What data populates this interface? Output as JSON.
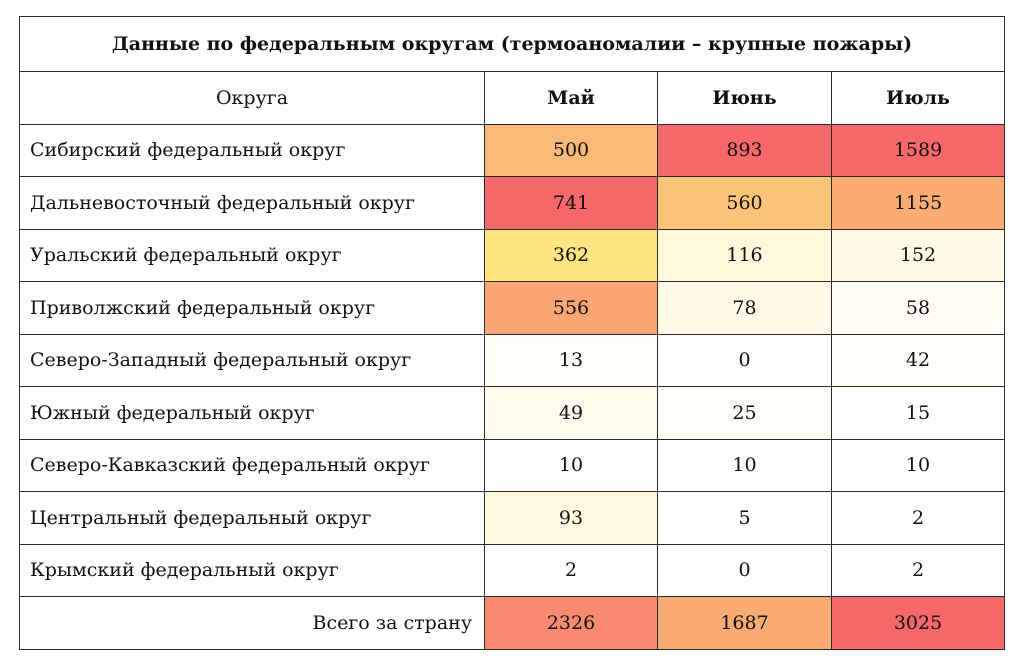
{
  "table": {
    "title": "Данные по федеральным округам (термоаномалии – крупные пожары)",
    "header_label": "Округа",
    "months": [
      "Май",
      "Июнь",
      "Июль"
    ],
    "rows": [
      {
        "name": "Сибирский федеральный округ",
        "values": [
          500,
          893,
          1589
        ]
      },
      {
        "name": "Дальневосточный федеральный округ",
        "values": [
          741,
          560,
          1155
        ]
      },
      {
        "name": "Уральский федеральный округ",
        "values": [
          362,
          116,
          152
        ]
      },
      {
        "name": "Приволжский федеральный округ",
        "values": [
          556,
          78,
          58
        ]
      },
      {
        "name": "Северо-Западный федеральный округ",
        "values": [
          13,
          0,
          42
        ]
      },
      {
        "name": "Южный федеральный округ",
        "values": [
          49,
          25,
          15
        ]
      },
      {
        "name": "Северо-Кавказский федеральный округ",
        "values": [
          10,
          10,
          10
        ]
      },
      {
        "name": "Центральный федеральный округ",
        "values": [
          93,
          5,
          2
        ]
      },
      {
        "name": "Крымский федеральный округ",
        "values": [
          2,
          0,
          2
        ]
      }
    ],
    "total": {
      "label": "Всего за страну",
      "values": [
        2326,
        1687,
        3025
      ]
    }
  },
  "colors": {
    "scale_low": "#ffffff",
    "scale_mid": "#fde47e",
    "scale_high": "#f8686b"
  },
  "chart_data": {
    "type": "table",
    "title": "Данные по федеральным округам (термоаномалии – крупные пожары)",
    "categories": [
      "Май",
      "Июнь",
      "Июль"
    ],
    "series": [
      {
        "name": "Сибирский федеральный округ",
        "values": [
          500,
          893,
          1589
        ]
      },
      {
        "name": "Дальневосточный федеральный округ",
        "values": [
          741,
          560,
          1155
        ]
      },
      {
        "name": "Уральский федеральный округ",
        "values": [
          362,
          116,
          152
        ]
      },
      {
        "name": "Приволжский федеральный округ",
        "values": [
          556,
          78,
          58
        ]
      },
      {
        "name": "Северо-Западный федеральный округ",
        "values": [
          13,
          0,
          42
        ]
      },
      {
        "name": "Южный федеральный округ",
        "values": [
          49,
          25,
          15
        ]
      },
      {
        "name": "Северо-Кавказский федеральный округ",
        "values": [
          10,
          10,
          10
        ]
      },
      {
        "name": "Центральный федеральный округ",
        "values": [
          93,
          5,
          2
        ]
      },
      {
        "name": "Крымский федеральный округ",
        "values": [
          2,
          0,
          2
        ]
      },
      {
        "name": "Всего за страну",
        "values": [
          2326,
          1687,
          3025
        ]
      }
    ]
  }
}
